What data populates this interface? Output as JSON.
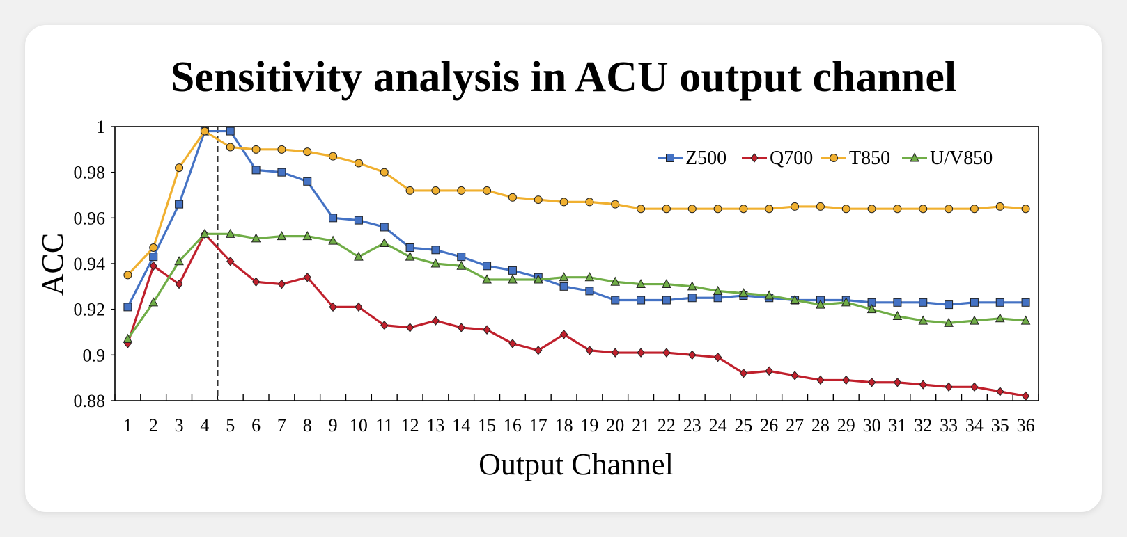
{
  "chart_data": {
    "type": "line",
    "title": "Sensitivity analysis in ACU output channel",
    "xlabel": "Output Channel",
    "ylabel": "ACC",
    "x": [
      1,
      2,
      3,
      4,
      5,
      6,
      7,
      8,
      9,
      10,
      11,
      12,
      13,
      14,
      15,
      16,
      17,
      18,
      19,
      20,
      21,
      22,
      23,
      24,
      25,
      26,
      27,
      28,
      29,
      30,
      31,
      32,
      33,
      34,
      35,
      36
    ],
    "ylim": [
      0.88,
      1.0
    ],
    "yticks": [
      0.88,
      0.9,
      0.92,
      0.94,
      0.96,
      0.98,
      1
    ],
    "ytick_labels": [
      "0.88",
      "0.9",
      "0.92",
      "0.94",
      "0.96",
      "0.98",
      "1"
    ],
    "marker_line_x": 4.5,
    "legend_position": "top-right",
    "grid": false,
    "series": [
      {
        "name": "Z500",
        "color": "#4472c4",
        "marker": "square",
        "values": [
          0.921,
          0.943,
          0.966,
          0.998,
          0.998,
          0.981,
          0.98,
          0.976,
          0.96,
          0.959,
          0.956,
          0.947,
          0.946,
          0.943,
          0.939,
          0.937,
          0.934,
          0.93,
          0.928,
          0.924,
          0.924,
          0.924,
          0.925,
          0.925,
          0.926,
          0.925,
          0.924,
          0.924,
          0.924,
          0.923,
          0.923,
          0.923,
          0.922,
          0.923,
          0.923,
          0.923
        ]
      },
      {
        "name": "Q700",
        "color": "#c0202c",
        "marker": "diamond",
        "values": [
          0.905,
          0.939,
          0.931,
          0.953,
          0.941,
          0.932,
          0.931,
          0.934,
          0.921,
          0.921,
          0.913,
          0.912,
          0.915,
          0.912,
          0.911,
          0.905,
          0.902,
          0.909,
          0.902,
          0.901,
          0.901,
          0.901,
          0.9,
          0.899,
          0.892,
          0.893,
          0.891,
          0.889,
          0.889,
          0.888,
          0.888,
          0.887,
          0.886,
          0.886,
          0.884,
          0.882
        ]
      },
      {
        "name": "T850",
        "color": "#f0b030",
        "marker": "circle",
        "values": [
          0.935,
          0.947,
          0.982,
          0.998,
          0.991,
          0.99,
          0.99,
          0.989,
          0.987,
          0.984,
          0.98,
          0.972,
          0.972,
          0.972,
          0.972,
          0.969,
          0.968,
          0.967,
          0.967,
          0.966,
          0.964,
          0.964,
          0.964,
          0.964,
          0.964,
          0.964,
          0.965,
          0.965,
          0.964,
          0.964,
          0.964,
          0.964,
          0.964,
          0.964,
          0.965,
          0.964
        ]
      },
      {
        "name": "U/V850",
        "color": "#70ad47",
        "marker": "triangle",
        "values": [
          0.907,
          0.923,
          0.941,
          0.953,
          0.953,
          0.951,
          0.952,
          0.952,
          0.95,
          0.943,
          0.949,
          0.943,
          0.94,
          0.939,
          0.933,
          0.933,
          0.933,
          0.934,
          0.934,
          0.932,
          0.931,
          0.931,
          0.93,
          0.928,
          0.927,
          0.926,
          0.924,
          0.922,
          0.923,
          0.92,
          0.917,
          0.915,
          0.914,
          0.915,
          0.916,
          0.915
        ]
      }
    ]
  }
}
